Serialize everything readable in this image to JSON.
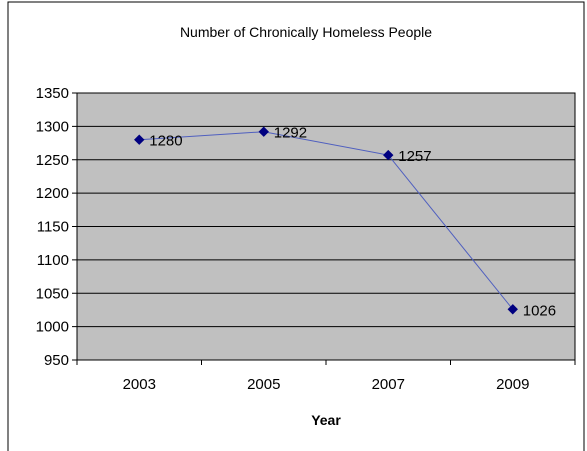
{
  "chart_data": {
    "type": "line",
    "title": "Number of Chronically Homeless People",
    "xlabel": "Year",
    "ylabel": "",
    "categories": [
      "2003",
      "2005",
      "2007",
      "2009"
    ],
    "series": [
      {
        "values": [
          1280,
          1292,
          1257,
          1026
        ],
        "labels": [
          "1280",
          "1292",
          "1257",
          "1026"
        ]
      }
    ],
    "ylim": [
      950,
      1350
    ],
    "ytick_step": 50,
    "yticks": [
      "950",
      "1000",
      "1050",
      "1100",
      "1150",
      "1200",
      "1250",
      "1300",
      "1350"
    ],
    "grid": true,
    "legend": "none",
    "colors": {
      "plot_background": "#c0c0c0",
      "line": "#4f5fbf",
      "marker": "#000080",
      "grid": "#000000",
      "border": "#000000"
    }
  }
}
